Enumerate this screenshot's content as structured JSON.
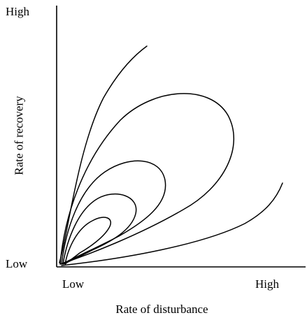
{
  "axes": {
    "x_title": "Rate of disturbance",
    "y_title": "Rate of recovery",
    "x_low_label": "Low",
    "x_high_label": "High",
    "y_low_label": "Low",
    "y_high_label": "High"
  },
  "curves": {
    "count": 6,
    "stroke_color": "#000000",
    "names": [
      "upper-open-curve",
      "large-loop",
      "medium-loop",
      "small-loop",
      "innermost-loop",
      "lower-open-curve"
    ]
  }
}
